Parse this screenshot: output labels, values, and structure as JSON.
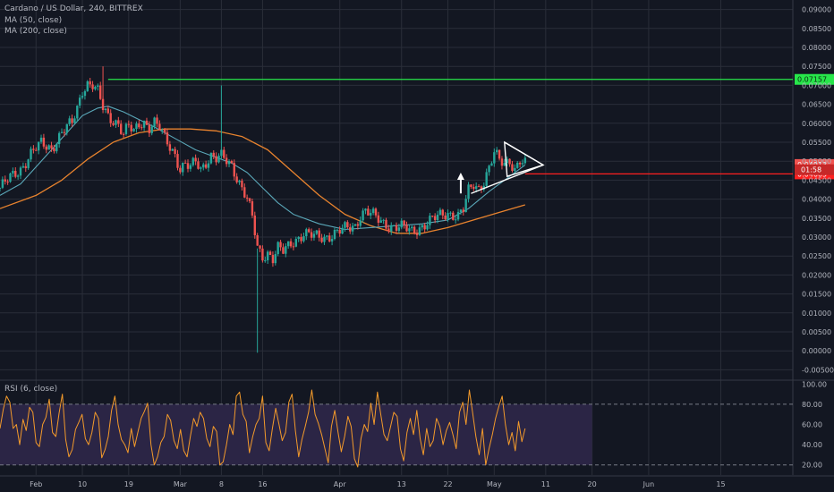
{
  "header": {
    "symbol_line": "Cardano / US Dollar, 240, BITTREX",
    "ma50": "MA (50, close)",
    "ma200": "MA (200, close)",
    "rsi": "RSI (6, close)"
  },
  "colors": {
    "background": "#131722",
    "grid": "#2a2e39",
    "candle_up": "#26a69a",
    "candle_down": "#ef5350",
    "ma50": "#5aa7b8",
    "ma200": "#e8832e",
    "rsi_line": "#f39a2b",
    "rsi_band": "#2b2545",
    "resistance": "#27e64a",
    "support": "#ff1f1f",
    "drawing": "#ffffff"
  },
  "chart_data": [
    {
      "type": "candlestick",
      "title": "Cardano / US Dollar, 240, BITTREX",
      "y_ticks": [
        "0.09000",
        "0.08500",
        "0.08000",
        "0.07500",
        "0.07000",
        "0.06500",
        "0.06000",
        "0.05500",
        "0.05000",
        "0.04500",
        "0.04000",
        "0.03500",
        "0.03000",
        "0.02500",
        "0.02000",
        "0.01500",
        "0.01000",
        "0.00500",
        "0.00000",
        "-0.00500"
      ],
      "y_tick_values": [
        0.09,
        0.085,
        0.08,
        0.075,
        0.07,
        0.065,
        0.06,
        0.055,
        0.05,
        0.045,
        0.04,
        0.035,
        0.03,
        0.025,
        0.02,
        0.015,
        0.01,
        0.005,
        0.0,
        -0.005
      ],
      "ylim": [
        -0.0075,
        0.0925
      ],
      "x_ticks": [
        "Feb",
        "10",
        "19",
        "Mar",
        "8",
        "16",
        "Apr",
        "13",
        "22",
        "May",
        "11",
        "20",
        "Jun",
        "15"
      ],
      "x_tick_days": [
        0,
        9,
        18,
        28,
        36,
        44,
        59,
        71,
        80,
        89,
        99,
        108,
        119,
        133
      ],
      "xlim_days": [
        -7,
        147
      ],
      "price_path": [
        [
          -7,
          0.043
        ],
        [
          -5,
          0.0455
        ],
        [
          -3,
          0.048
        ],
        [
          -1,
          0.052
        ],
        [
          1,
          0.0545
        ],
        [
          3,
          0.0535
        ],
        [
          5,
          0.0575
        ],
        [
          7,
          0.06
        ],
        [
          8,
          0.064
        ],
        [
          9,
          0.069
        ],
        [
          10,
          0.0705
        ],
        [
          11,
          0.07
        ],
        [
          12,
          0.068
        ],
        [
          13,
          0.064
        ],
        [
          14,
          0.062
        ],
        [
          15,
          0.061
        ],
        [
          16,
          0.06
        ],
        [
          17,
          0.057
        ],
        [
          18,
          0.059
        ],
        [
          19,
          0.0575
        ],
        [
          20,
          0.06
        ],
        [
          21,
          0.0605
        ],
        [
          22,
          0.059
        ],
        [
          23,
          0.06
        ],
        [
          24,
          0.0585
        ],
        [
          25,
          0.056
        ],
        [
          26,
          0.054
        ],
        [
          27,
          0.052
        ],
        [
          28,
          0.048
        ],
        [
          29,
          0.049
        ],
        [
          30,
          0.048
        ],
        [
          31,
          0.05
        ],
        [
          32,
          0.048
        ],
        [
          33,
          0.05
        ],
        [
          34,
          0.0515
        ],
        [
          35,
          0.0505
        ],
        [
          36,
          0.051
        ],
        [
          37,
          0.05
        ],
        [
          38,
          0.049
        ],
        [
          39,
          0.046
        ],
        [
          40,
          0.043
        ],
        [
          41,
          0.04
        ],
        [
          42,
          0.035
        ],
        [
          43,
          0.027
        ],
        [
          44,
          0.025
        ],
        [
          45,
          0.026
        ],
        [
          46,
          0.0245
        ],
        [
          47,
          0.027
        ],
        [
          48,
          0.026
        ],
        [
          50,
          0.029
        ],
        [
          52,
          0.031
        ],
        [
          54,
          0.03
        ],
        [
          56,
          0.03
        ],
        [
          58,
          0.031
        ],
        [
          60,
          0.032
        ],
        [
          62,
          0.033
        ],
        [
          63,
          0.036
        ],
        [
          64,
          0.037
        ],
        [
          65,
          0.036
        ],
        [
          67,
          0.034
        ],
        [
          69,
          0.033
        ],
        [
          71,
          0.0325
        ],
        [
          73,
          0.0315
        ],
        [
          75,
          0.033
        ],
        [
          77,
          0.0345
        ],
        [
          79,
          0.036
        ],
        [
          80,
          0.0365
        ],
        [
          81,
          0.036
        ],
        [
          82,
          0.0355
        ],
        [
          83,
          0.037
        ],
        [
          84,
          0.042
        ],
        [
          85,
          0.044
        ],
        [
          86,
          0.043
        ],
        [
          87,
          0.045
        ],
        [
          88,
          0.048
        ],
        [
          89,
          0.052
        ],
        [
          90,
          0.05
        ],
        [
          91,
          0.0495
        ],
        [
          92,
          0.0505
        ],
        [
          93,
          0.048
        ],
        [
          94,
          0.05
        ],
        [
          95,
          0.049
        ]
      ],
      "spikes": [
        {
          "day": 13,
          "high": 0.075
        },
        {
          "day": 36,
          "high": 0.07
        },
        {
          "day": 43,
          "low": -0.0005
        }
      ],
      "ma50": [
        [
          -7,
          0.041
        ],
        [
          -3,
          0.044
        ],
        [
          1,
          0.05
        ],
        [
          5,
          0.056
        ],
        [
          9,
          0.062
        ],
        [
          12,
          0.064
        ],
        [
          14,
          0.0645
        ],
        [
          17,
          0.063
        ],
        [
          20,
          0.061
        ],
        [
          23,
          0.059
        ],
        [
          27,
          0.056
        ],
        [
          31,
          0.053
        ],
        [
          35,
          0.051
        ],
        [
          38,
          0.0495
        ],
        [
          41,
          0.047
        ],
        [
          44,
          0.043
        ],
        [
          47,
          0.039
        ],
        [
          50,
          0.036
        ],
        [
          55,
          0.0335
        ],
        [
          60,
          0.032
        ],
        [
          65,
          0.0325
        ],
        [
          70,
          0.033
        ],
        [
          75,
          0.0335
        ],
        [
          80,
          0.0345
        ],
        [
          84,
          0.0375
        ],
        [
          88,
          0.042
        ],
        [
          91,
          0.045
        ],
        [
          94,
          0.048
        ],
        [
          95,
          0.049
        ]
      ],
      "ma200": [
        [
          -7,
          0.0375
        ],
        [
          0,
          0.041
        ],
        [
          5,
          0.045
        ],
        [
          10,
          0.0505
        ],
        [
          15,
          0.055
        ],
        [
          20,
          0.0575
        ],
        [
          25,
          0.0585
        ],
        [
          30,
          0.0585
        ],
        [
          35,
          0.058
        ],
        [
          40,
          0.0565
        ],
        [
          45,
          0.053
        ],
        [
          50,
          0.047
        ],
        [
          55,
          0.041
        ],
        [
          60,
          0.036
        ],
        [
          65,
          0.033
        ],
        [
          70,
          0.031
        ],
        [
          75,
          0.031
        ],
        [
          80,
          0.0325
        ],
        [
          85,
          0.0345
        ],
        [
          90,
          0.0365
        ],
        [
          95,
          0.0385
        ]
      ],
      "horizontal_lines": [
        {
          "name": "resistance",
          "value": 0.07157,
          "from_day": 14,
          "label": "0.07157"
        },
        {
          "name": "support",
          "value": 0.04665,
          "from_day": 95,
          "label": "0.04665"
        }
      ],
      "price_labels": [
        {
          "label": "0.04913",
          "value": 0.04913
        },
        {
          "label": "01:58",
          "value": 0.04775
        }
      ],
      "triangle_pattern": [
        [
          91,
          0.055
        ],
        [
          98.5,
          0.049
        ],
        [
          91.5,
          0.046
        ]
      ],
      "triangle_lines": [
        [
          [
            91,
            0.055
          ],
          [
            98.5,
            0.049
          ]
        ],
        [
          [
            84.5,
            0.0415
          ],
          [
            98.5,
            0.049
          ]
        ]
      ],
      "arrow": {
        "day": 82.5,
        "from": 0.0415,
        "to": 0.0465
      }
    },
    {
      "type": "line",
      "title": "RSI (6, close)",
      "y_ticks": [
        "100.00",
        "80.00",
        "60.00",
        "40.00",
        "20.00"
      ],
      "y_tick_values": [
        100,
        80,
        60,
        40,
        20
      ],
      "ylim": [
        10,
        102
      ],
      "band": [
        20,
        80
      ],
      "x_range_days": [
        -7,
        95
      ],
      "values": [
        56,
        75,
        88,
        82,
        56,
        60,
        40,
        65,
        54,
        77,
        72,
        42,
        38,
        60,
        67,
        85,
        52,
        48,
        71,
        90,
        45,
        28,
        35,
        55,
        62,
        70,
        46,
        40,
        52,
        72,
        66,
        27,
        35,
        48,
        74,
        88,
        60,
        45,
        40,
        32,
        56,
        38,
        52,
        66,
        73,
        81,
        40,
        20,
        28,
        42,
        48,
        70,
        64,
        44,
        36,
        55,
        34,
        28,
        48,
        66,
        58,
        72,
        66,
        46,
        38,
        58,
        53,
        20,
        23,
        40,
        60,
        50,
        88,
        92,
        70,
        63,
        32,
        48,
        60,
        66,
        88,
        42,
        34,
        56,
        76,
        60,
        44,
        52,
        82,
        90,
        54,
        28,
        45,
        58,
        72,
        94,
        70,
        61,
        50,
        36,
        22,
        58,
        74,
        52,
        33,
        48,
        68,
        58,
        26,
        18,
        46,
        60,
        53,
        81,
        60,
        92,
        70,
        50,
        44,
        58,
        72,
        68,
        36,
        24,
        52,
        66,
        50,
        74,
        46,
        30,
        56,
        38,
        44,
        66,
        58,
        40,
        54,
        62,
        50,
        36,
        72,
        82,
        60,
        94,
        72,
        48,
        30,
        56,
        20,
        36,
        50,
        66,
        78,
        88,
        60,
        40,
        52,
        34,
        63,
        43,
        56
      ]
    }
  ]
}
